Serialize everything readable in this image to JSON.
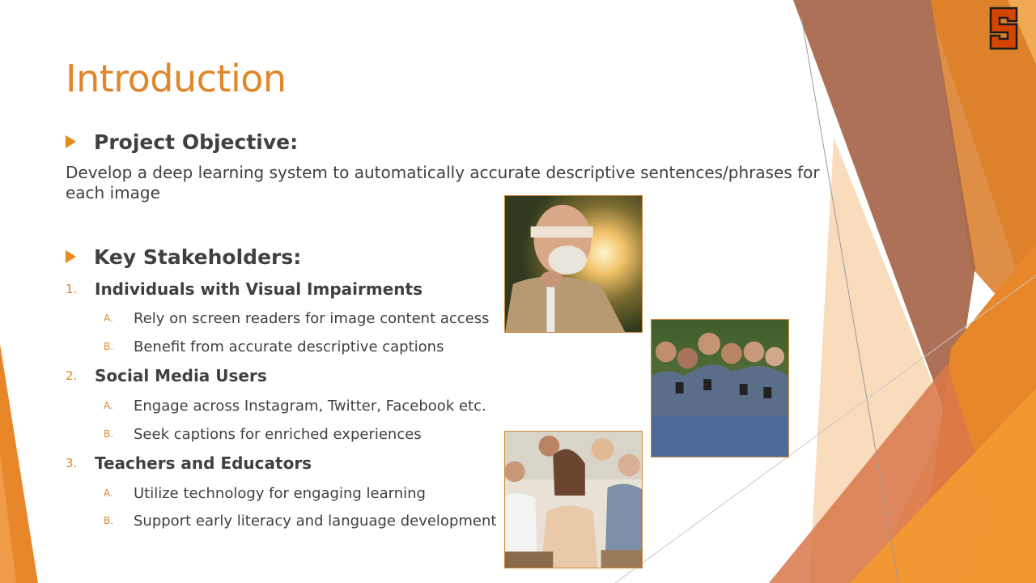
{
  "slide": {
    "title": "Introduction",
    "sections": [
      {
        "heading": "Project Objective:",
        "body": "Develop a deep learning system to automatically accurate descriptive sentences/phrases for each image"
      },
      {
        "heading": "Key Stakeholders:",
        "groups": [
          {
            "number": "1.",
            "label": "Individuals with Visual Impairments",
            "items": [
              {
                "letter": "A.",
                "text": "Rely on screen readers for image content access"
              },
              {
                "letter": "B.",
                "text": "Benefit from accurate descriptive captions"
              }
            ]
          },
          {
            "number": "2.",
            "label": "Social Media Users",
            "items": [
              {
                "letter": "A.",
                "text": "Engage across Instagram, Twitter, Facebook etc."
              },
              {
                "letter": "B.",
                "text": "Seek captions for enriched experiences"
              }
            ]
          },
          {
            "number": "3.",
            "label": "Teachers and Educators",
            "items": [
              {
                "letter": "A.",
                "text": "Utilize technology for engaging learning"
              },
              {
                "letter": "B.",
                "text": "Support early literacy and language development"
              }
            ]
          }
        ]
      }
    ]
  },
  "logo": {
    "letter": "S",
    "name": "orange-s-logo"
  },
  "colors": {
    "accent": "#E0862B",
    "text": "#404040",
    "bullet": "#E88A1A",
    "logo_fill": "#D44500",
    "logo_outline": "#1C1C1C"
  },
  "images": [
    {
      "name": "blindfolded-man-photo"
    },
    {
      "name": "friends-phones-photo"
    },
    {
      "name": "classroom-laughing-photo"
    }
  ]
}
